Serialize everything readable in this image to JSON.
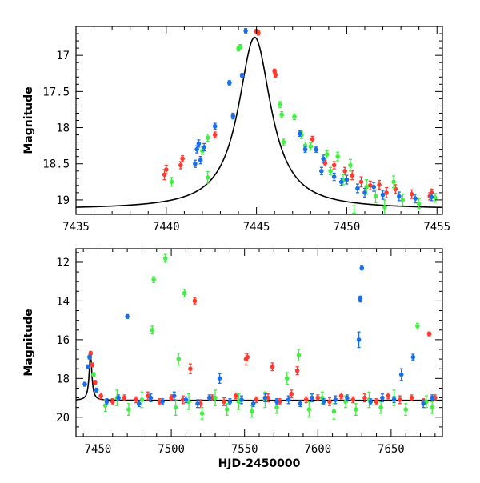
{
  "colors": {
    "red": "#ff3b2f",
    "green": "#44ee44",
    "blue": "#1a6fe8",
    "model": "#000000",
    "frame": "#000000"
  },
  "chart_data": [
    {
      "type": "scatter",
      "xlabel": "",
      "ylabel": "Magnitude",
      "xlim": [
        7435,
        7455.3
      ],
      "ylim": [
        19.2,
        16.6
      ],
      "y_inverted": true,
      "xticks": [
        7435,
        7440,
        7445,
        7450,
        7455
      ],
      "yticks": [
        17,
        17.5,
        18,
        18.5,
        19
      ],
      "ytick_labels": [
        "17",
        "17.5",
        "18",
        "18.5",
        "19"
      ],
      "model": {
        "name": "",
        "color": "#000000",
        "t0": 7444.9,
        "base": 19.13,
        "peak": 16.75,
        "width": 1.1
      },
      "series": [
        {
          "name": "",
          "color": "#ff3b2f",
          "points": [
            [
              7439.9,
              18.65,
              0.07
            ],
            [
              7440.0,
              18.58,
              0.06
            ],
            [
              7440.8,
              18.52,
              0.05
            ],
            [
              7440.9,
              18.43,
              0.04
            ],
            [
              7442.7,
              18.1,
              0.04
            ],
            [
              7445.0,
              16.67,
              0.03
            ],
            [
              7445.1,
              16.69,
              0.03
            ],
            [
              7446.0,
              17.22,
              0.03
            ],
            [
              7446.05,
              17.27,
              0.03
            ],
            [
              7448.1,
              18.16,
              0.04
            ],
            [
              7448.8,
              18.49,
              0.04
            ],
            [
              7449.3,
              18.52,
              0.05
            ],
            [
              7449.9,
              18.6,
              0.05
            ],
            [
              7450.3,
              18.66,
              0.06
            ],
            [
              7450.8,
              18.75,
              0.07
            ],
            [
              7451.3,
              18.8,
              0.06
            ],
            [
              7451.8,
              18.79,
              0.06
            ],
            [
              7452.2,
              18.9,
              0.07
            ],
            [
              7452.7,
              18.85,
              0.06
            ],
            [
              7453.6,
              18.92,
              0.06
            ],
            [
              7454.6,
              18.95,
              0.05
            ],
            [
              7454.7,
              18.9,
              0.05
            ]
          ]
        },
        {
          "name": "",
          "color": "#44ee44",
          "points": [
            [
              7440.3,
              18.75,
              0.06
            ],
            [
              7442.0,
              18.32,
              0.05
            ],
            [
              7442.3,
              18.14,
              0.05
            ],
            [
              7442.3,
              18.69,
              0.08
            ],
            [
              7444.0,
              16.91,
              0.03
            ],
            [
              7444.1,
              16.88,
              0.03
            ],
            [
              7446.3,
              17.68,
              0.04
            ],
            [
              7446.4,
              17.82,
              0.04
            ],
            [
              7446.5,
              18.2,
              0.04
            ],
            [
              7447.1,
              17.85,
              0.04
            ],
            [
              7447.5,
              18.1,
              0.05
            ],
            [
              7447.7,
              18.25,
              0.05
            ],
            [
              7448.0,
              18.26,
              0.05
            ],
            [
              7448.9,
              18.37,
              0.05
            ],
            [
              7449.1,
              18.6,
              0.05
            ],
            [
              7449.5,
              18.4,
              0.06
            ],
            [
              7449.8,
              18.72,
              0.07
            ],
            [
              7450.2,
              18.52,
              0.08
            ],
            [
              7450.4,
              19.2,
              0.12
            ],
            [
              7451.1,
              18.82,
              0.1
            ],
            [
              7451.6,
              18.95,
              0.09
            ],
            [
              7452.1,
              19.1,
              0.1
            ],
            [
              7452.6,
              18.75,
              0.08
            ],
            [
              7453.1,
              19.0,
              0.08
            ],
            [
              7454.0,
              19.05,
              0.07
            ],
            [
              7454.9,
              18.97,
              0.06
            ]
          ]
        },
        {
          "name": "",
          "color": "#1a6fe8",
          "points": [
            [
              7441.6,
              18.5,
              0.05
            ],
            [
              7441.7,
              18.3,
              0.05
            ],
            [
              7441.8,
              18.22,
              0.05
            ],
            [
              7441.9,
              18.45,
              0.05
            ],
            [
              7442.1,
              18.27,
              0.05
            ],
            [
              7442.7,
              17.98,
              0.04
            ],
            [
              7443.5,
              17.38,
              0.03
            ],
            [
              7443.7,
              17.84,
              0.04
            ],
            [
              7444.2,
              17.28,
              0.03
            ],
            [
              7444.4,
              16.66,
              0.03
            ],
            [
              7447.4,
              18.08,
              0.04
            ],
            [
              7447.7,
              18.3,
              0.04
            ],
            [
              7448.3,
              18.3,
              0.04
            ],
            [
              7448.6,
              18.6,
              0.05
            ],
            [
              7448.7,
              18.43,
              0.05
            ],
            [
              7449.3,
              18.68,
              0.05
            ],
            [
              7449.7,
              18.75,
              0.05
            ],
            [
              7450.0,
              18.72,
              0.06
            ],
            [
              7450.6,
              18.84,
              0.06
            ],
            [
              7451.0,
              18.9,
              0.06
            ],
            [
              7451.5,
              18.82,
              0.06
            ],
            [
              7452.0,
              18.93,
              0.06
            ],
            [
              7452.9,
              18.95,
              0.06
            ],
            [
              7453.8,
              18.98,
              0.06
            ],
            [
              7454.7,
              18.96,
              0.05
            ]
          ]
        }
      ]
    },
    {
      "type": "scatter",
      "xlabel": "HJD-2450000",
      "ylabel": "Magnitude",
      "xlim": [
        7435,
        7685
      ],
      "ylim": [
        21,
        11.3
      ],
      "y_inverted": true,
      "xticks": [
        7450,
        7500,
        7550,
        7600,
        7650
      ],
      "yticks": [
        12,
        14,
        16,
        18,
        20
      ],
      "model": {
        "name": "",
        "color": "#000000",
        "t0": 7444.9,
        "base": 19.13,
        "peak": 16.75,
        "width": 1.1
      },
      "series": [
        {
          "name": "",
          "color": "#ff3b2f",
          "points": [
            [
              7445,
              16.7,
              0.1
            ],
            [
              7446,
              17.3,
              0.1
            ],
            [
              7448,
              18.2,
              0.1
            ],
            [
              7452,
              18.9,
              0.15
            ],
            [
              7460,
              19.2,
              0.15
            ],
            [
              7468,
              19.0,
              0.15
            ],
            [
              7476,
              19.1,
              0.15
            ],
            [
              7484,
              18.9,
              0.2
            ],
            [
              7492,
              19.2,
              0.15
            ],
            [
              7500,
              19.0,
              0.15
            ],
            [
              7508,
              19.1,
              0.2
            ],
            [
              7513,
              17.5,
              0.25
            ],
            [
              7516,
              14.0,
              0.15
            ],
            [
              7520,
              19.3,
              0.2
            ],
            [
              7528,
              19.0,
              0.15
            ],
            [
              7536,
              19.2,
              0.2
            ],
            [
              7544,
              18.9,
              0.15
            ],
            [
              7551,
              17.0,
              0.3
            ],
            [
              7552,
              16.9,
              0.2
            ],
            [
              7558,
              19.1,
              0.15
            ],
            [
              7566,
              19.0,
              0.2
            ],
            [
              7569,
              17.4,
              0.2
            ],
            [
              7574,
              19.2,
              0.15
            ],
            [
              7582,
              18.8,
              0.2
            ],
            [
              7586,
              17.6,
              0.2
            ],
            [
              7592,
              19.1,
              0.15
            ],
            [
              7600,
              19.0,
              0.15
            ],
            [
              7608,
              19.2,
              0.2
            ],
            [
              7616,
              18.9,
              0.15
            ],
            [
              7624,
              19.1,
              0.15
            ],
            [
              7632,
              19.0,
              0.2
            ],
            [
              7640,
              19.2,
              0.15
            ],
            [
              7648,
              18.9,
              0.15
            ],
            [
              7656,
              19.1,
              0.2
            ],
            [
              7664,
              19.0,
              0.15
            ],
            [
              7672,
              19.2,
              0.15
            ],
            [
              7676,
              15.7,
              0.1
            ],
            [
              7680,
              19.0,
              0.15
            ]
          ]
        },
        {
          "name": "",
          "color": "#44ee44",
          "points": [
            [
              7444,
              16.9,
              0.1
            ],
            [
              7447,
              17.8,
              0.1
            ],
            [
              7455,
              19.4,
              0.3
            ],
            [
              7463,
              19.0,
              0.4
            ],
            [
              7471,
              19.6,
              0.3
            ],
            [
              7480,
              19.1,
              0.4
            ],
            [
              7487,
              15.5,
              0.2
            ],
            [
              7488,
              12.9,
              0.15
            ],
            [
              7496,
              11.8,
              0.2
            ],
            [
              7503,
              19.5,
              0.4
            ],
            [
              7505,
              17.0,
              0.3
            ],
            [
              7509,
              13.6,
              0.2
            ],
            [
              7512,
              19.2,
              0.4
            ],
            [
              7521,
              19.8,
              0.3
            ],
            [
              7530,
              19.0,
              0.4
            ],
            [
              7538,
              19.6,
              0.3
            ],
            [
              7546,
              19.2,
              0.4
            ],
            [
              7555,
              19.7,
              0.3
            ],
            [
              7564,
              19.1,
              0.4
            ],
            [
              7572,
              19.5,
              0.3
            ],
            [
              7579,
              18.0,
              0.3
            ],
            [
              7587,
              16.8,
              0.3
            ],
            [
              7594,
              19.6,
              0.4
            ],
            [
              7603,
              19.0,
              0.3
            ],
            [
              7611,
              19.7,
              0.4
            ],
            [
              7619,
              19.2,
              0.3
            ],
            [
              7626,
              19.6,
              0.3
            ],
            [
              7635,
              19.1,
              0.4
            ],
            [
              7643,
              19.5,
              0.3
            ],
            [
              7652,
              19.0,
              0.4
            ],
            [
              7660,
              19.6,
              0.3
            ],
            [
              7668,
              15.3,
              0.15
            ],
            [
              7674,
              19.2,
              0.3
            ],
            [
              7678,
              19.5,
              0.3
            ]
          ]
        },
        {
          "name": "",
          "color": "#1a6fe8",
          "points": [
            [
              7441,
              18.3,
              0.1
            ],
            [
              7443,
              17.4,
              0.1
            ],
            [
              7444.4,
              16.9,
              0.1
            ],
            [
              7449,
              18.6,
              0.1
            ],
            [
              7456,
              19.2,
              0.15
            ],
            [
              7464,
              19.0,
              0.15
            ],
            [
              7470,
              14.8,
              0.1
            ],
            [
              7478,
              19.3,
              0.15
            ],
            [
              7486,
              19.0,
              0.2
            ],
            [
              7494,
              19.2,
              0.15
            ],
            [
              7502,
              18.9,
              0.2
            ],
            [
              7510,
              19.1,
              0.15
            ],
            [
              7518,
              19.3,
              0.2
            ],
            [
              7526,
              19.0,
              0.15
            ],
            [
              7533,
              18.0,
              0.25
            ],
            [
              7540,
              19.2,
              0.15
            ],
            [
              7548,
              19.1,
              0.2
            ],
            [
              7556,
              19.3,
              0.15
            ],
            [
              7564,
              19.0,
              0.2
            ],
            [
              7572,
              19.2,
              0.15
            ],
            [
              7580,
              19.1,
              0.2
            ],
            [
              7588,
              19.3,
              0.15
            ],
            [
              7596,
              19.0,
              0.2
            ],
            [
              7604,
              19.2,
              0.15
            ],
            [
              7612,
              19.1,
              0.2
            ],
            [
              7620,
              19.0,
              0.15
            ],
            [
              7628,
              16.0,
              0.4
            ],
            [
              7629,
              13.9,
              0.15
            ],
            [
              7630,
              12.3,
              0.1
            ],
            [
              7636,
              19.2,
              0.15
            ],
            [
              7644,
              19.0,
              0.2
            ],
            [
              7652,
              19.1,
              0.15
            ],
            [
              7657,
              17.8,
              0.3
            ],
            [
              7665,
              16.9,
              0.15
            ],
            [
              7672,
              19.3,
              0.2
            ],
            [
              7678,
              19.0,
              0.15
            ]
          ]
        }
      ]
    }
  ]
}
